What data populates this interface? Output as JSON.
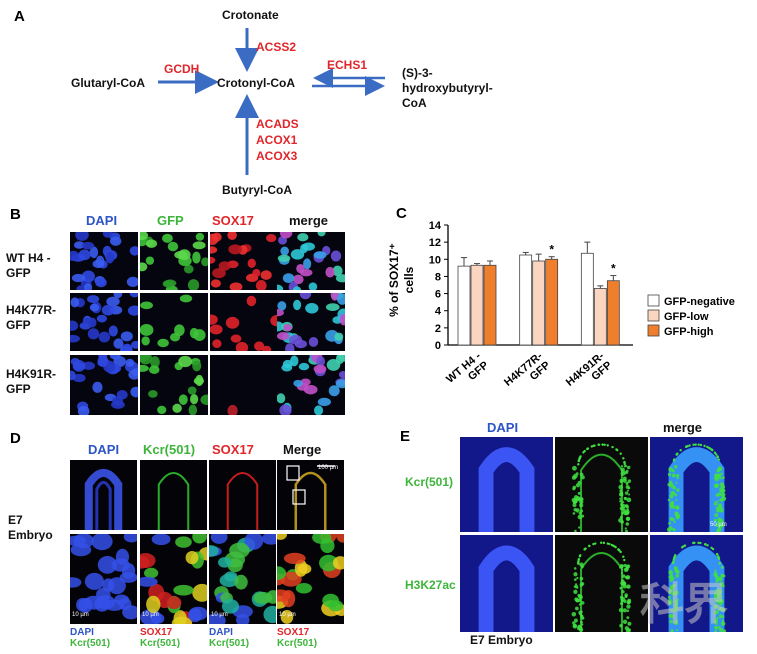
{
  "panelA": {
    "label": "A",
    "crotonate": "Crotonate",
    "acss2": "ACSS2",
    "gcdh": "GCDH",
    "echs1": "ECHS1",
    "glutaryl": "Glutaryl-CoA",
    "crotonyl": "Crotonyl-CoA",
    "hbcoa": [
      "(S)-3-",
      "hydroxybutyryl-",
      "CoA"
    ],
    "enzymes_bottom": [
      "ACADS",
      "ACOX1",
      "ACOX3"
    ],
    "butyryl": "Butyryl-CoA",
    "colors": {
      "arrow": "#3b6cc4",
      "enzyme": "#e0262b"
    }
  },
  "panelB": {
    "label": "B",
    "columns": [
      {
        "text": "DAPI",
        "color": "#2e55c8"
      },
      {
        "text": "GFP",
        "color": "#3db53b"
      },
      {
        "text": "SOX17",
        "color": "#e0262b"
      },
      {
        "text": "merge",
        "color": "#111111"
      }
    ],
    "rows": [
      [
        "WT H4 -",
        "GFP"
      ],
      [
        "H4K77R-",
        "GFP"
      ],
      [
        "H4K91R-",
        "GFP"
      ]
    ]
  },
  "panelC": {
    "label": "C",
    "chart_data": {
      "type": "bar",
      "categories": [
        [
          "WT H4 -",
          "GFP"
        ],
        [
          "H4K77R-",
          "GFP"
        ],
        [
          "H4K91R-",
          "GFP"
        ]
      ],
      "series": [
        {
          "name": "GFP-negative",
          "color": "#ffffff",
          "values": [
            9.2,
            10.5,
            10.7
          ],
          "errors": [
            1.0,
            0.3,
            1.3
          ]
        },
        {
          "name": "GFP-low",
          "color": "#fbd5c0",
          "values": [
            9.3,
            9.8,
            6.6
          ],
          "errors": [
            0.2,
            0.8,
            0.3
          ]
        },
        {
          "name": "GFP-high",
          "color": "#ef7f2c",
          "values": [
            9.3,
            10.0,
            7.5
          ],
          "errors": [
            0.5,
            0.3,
            0.6
          ]
        }
      ],
      "significant": [
        [
          "H4K77R-",
          "GFP-high"
        ],
        [
          "H4K91R-",
          "GFP-high"
        ]
      ],
      "significance_mark": "*",
      "ylabel_lines": [
        "% of SOX17⁺",
        "cells"
      ],
      "yticks": [
        0,
        2,
        4,
        6,
        8,
        10,
        12,
        14
      ],
      "ylim": [
        0,
        14
      ],
      "legend_position": "right"
    }
  },
  "panelD": {
    "label": "D",
    "columns": [
      {
        "text": "DAPI",
        "color": "#2e55c8"
      },
      {
        "text": "Kcr(501)",
        "color": "#3db53b"
      },
      {
        "text": "SOX17",
        "color": "#e0262b"
      },
      {
        "text": "Merge",
        "color": "#111111"
      }
    ],
    "row_label": [
      "E7",
      "Embryo"
    ],
    "scale_top": "100 µm",
    "scale_bottom": "10 µm",
    "bottom_labels": [
      [
        {
          "text": "DAPI",
          "color": "#2e55c8"
        },
        {
          "text": "Kcr(501)",
          "color": "#3db53b"
        }
      ],
      [
        {
          "text": "SOX17",
          "color": "#e0262b"
        },
        {
          "text": "Kcr(501)",
          "color": "#3db53b"
        }
      ],
      [
        {
          "text": "DAPI",
          "color": "#2e55c8"
        },
        {
          "text": "Kcr(501)",
          "color": "#3db53b"
        }
      ],
      [
        {
          "text": "SOX17",
          "color": "#e0262b"
        },
        {
          "text": "Kcr(501)",
          "color": "#3db53b"
        }
      ]
    ]
  },
  "panelE": {
    "label": "E",
    "col1": "DAPI",
    "col3": "merge",
    "rows": [
      "Kcr(501)",
      "H3K27ac"
    ],
    "scale": "50 µm",
    "footer": "E7 Embryo",
    "watermark": "科界"
  }
}
